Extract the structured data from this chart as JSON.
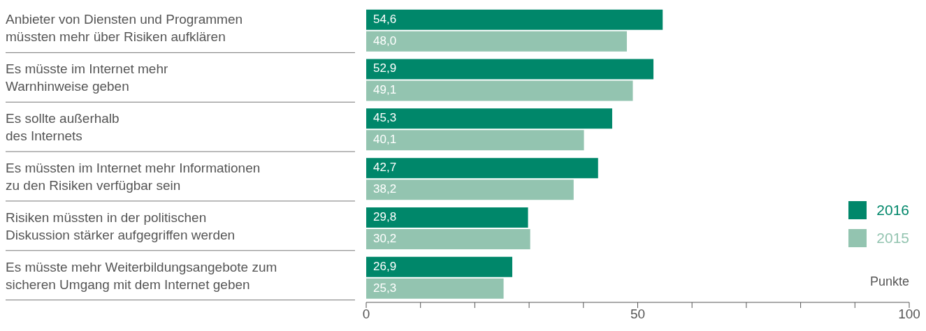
{
  "chart_data": {
    "type": "bar",
    "orientation": "horizontal",
    "categories": [
      "Anbieter von Diensten und Programmen\nmüssten mehr über Risiken aufklären",
      "Es müsste im Internet mehr\nWarnhinweise geben",
      "Es sollte außerhalb\ndes Internets",
      "Es müssten im Internet mehr Informationen\nzu den Risiken verfügbar sein",
      "Risiken müssten in der politischen\nDiskussion stärker aufgegriffen werden",
      "Es müsste mehr Weiterbildungsangebote zum\nsicheren Umgang mit dem Internet geben"
    ],
    "series": [
      {
        "name": "2016",
        "color": "#00876a",
        "values": [
          54.6,
          52.9,
          45.3,
          42.7,
          29.8,
          26.9
        ],
        "value_labels": [
          "54,6",
          "52,9",
          "45,3",
          "42,7",
          "29,8",
          "26,9"
        ]
      },
      {
        "name": "2015",
        "color": "#93c4b0",
        "values": [
          48.0,
          49.1,
          40.1,
          38.2,
          30.2,
          25.3
        ],
        "value_labels": [
          "48,0",
          "49,1",
          "40,1",
          "38,2",
          "30,2",
          "25,3"
        ]
      }
    ],
    "xlabel": "Punkte",
    "xlim": [
      0,
      100
    ],
    "xticks": [
      0,
      {
        "value": 10,
        "label": null
      },
      {
        "value": 20,
        "label": null
      },
      {
        "value": 30,
        "label": null
      },
      {
        "value": 40,
        "label": null
      },
      50,
      {
        "value": 60,
        "label": null
      },
      {
        "value": 70,
        "label": null
      },
      {
        "value": 80,
        "label": null
      },
      {
        "value": 90,
        "label": null
      },
      100
    ],
    "legend": "right",
    "grid": false
  }
}
